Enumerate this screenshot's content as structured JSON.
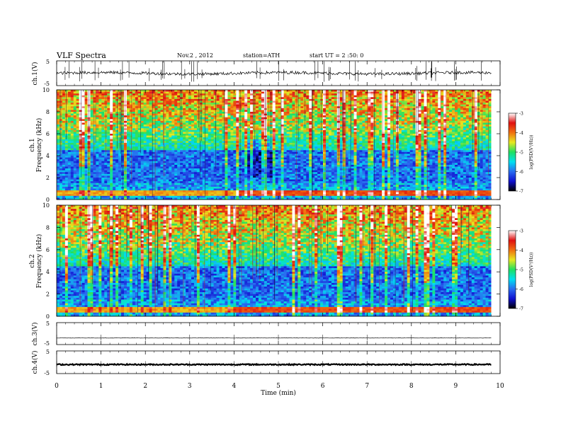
{
  "header": {
    "title": "VLF  Spectra",
    "date": "Nov.2  , 2012",
    "station": "station=ATH",
    "start": "start  UT  =   2  :50: 0"
  },
  "colorbar": {
    "label": "log(PSD(V²/Hz))",
    "ticks": [
      "-3",
      "-4",
      "-5",
      "-6",
      "-7"
    ],
    "stops": [
      "#000000",
      "#1010d0",
      "#2a6cf0",
      "#00e0f0",
      "#20e060",
      "#e8e820",
      "#f07010",
      "#e01010",
      "#ffffff"
    ]
  },
  "chart_data": [
    {
      "type": "line",
      "name": "ch1-waveform",
      "ylabel": "ch.1(V)",
      "ylim": [
        -5,
        5
      ],
      "yticks": [
        "5",
        "-5"
      ],
      "x_range_min": [
        0,
        10
      ],
      "approx_level": 0,
      "description_values": {
        "mean": 0.1,
        "noise_amplitude": 0.6,
        "spike_max": 4.8
      }
    },
    {
      "type": "heatmap",
      "name": "ch1-spectrogram",
      "ylabel_top": "ch.1",
      "ylabel": "Frequency  (kHz)",
      "ylim": [
        0,
        10
      ],
      "yticks": [
        "0",
        "2",
        "4",
        "6",
        "8",
        "10"
      ],
      "xlim": [
        0,
        10
      ],
      "data_end_min": 9.8,
      "zlim": [
        -7,
        -3
      ]
    },
    {
      "type": "heatmap",
      "name": "ch2-spectrogram",
      "ylabel_top": "ch.2",
      "ylabel": "Frequency  (kHz)",
      "ylim": [
        0,
        10
      ],
      "yticks": [
        "0",
        "2",
        "4",
        "6",
        "8",
        "10"
      ],
      "xlim": [
        0,
        10
      ],
      "data_end_min": 9.8,
      "zlim": [
        -7,
        -3
      ]
    },
    {
      "type": "line",
      "name": "ch3-waveform",
      "ylabel": "ch.3(V)",
      "ylim": [
        -5,
        5
      ],
      "yticks": [
        "5",
        "-5"
      ],
      "approx_level": -2
    },
    {
      "type": "line",
      "name": "ch4-waveform",
      "ylabel": "ch.4(V)",
      "ylim": [
        -5,
        5
      ],
      "yticks": [
        "5",
        "-5"
      ],
      "approx_level": -1
    }
  ],
  "xaxis": {
    "label": "Time  (min)",
    "ticks": [
      "0",
      "1",
      "2",
      "3",
      "4",
      "5",
      "6",
      "7",
      "8",
      "9",
      "10"
    ]
  }
}
